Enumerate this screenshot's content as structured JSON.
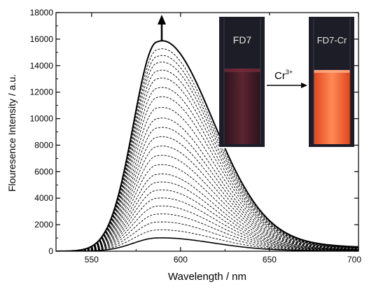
{
  "chart_data": {
    "type": "line",
    "xlabel": "Wavelength / nm",
    "ylabel": "Flouresence Intensity / a.u.",
    "xlim": [
      530,
      700
    ],
    "ylim": [
      0,
      18000
    ],
    "xticks": [
      550,
      600,
      650,
      700
    ],
    "yticks": [
      0,
      2000,
      4000,
      6000,
      8000,
      10000,
      12000,
      14000,
      16000,
      18000
    ],
    "grid": false,
    "peak_wavelength": 587,
    "curve_count": 24,
    "peak_intensities": [
      1000,
      1600,
      2200,
      2800,
      3400,
      4000,
      4600,
      5200,
      5800,
      6500,
      7200,
      7900,
      8600,
      9300,
      10000,
      10800,
      11600,
      12300,
      13000,
      13600,
      14200,
      14700,
      15200,
      15800
    ],
    "first_curve_style": "solid",
    "last_curve_style": "solid",
    "intermediate_curve_style": "dashed",
    "arrow_direction": "up",
    "inset": {
      "left_vial_label": "FD7",
      "right_vial_label": "FD7-Cr",
      "reagent_label": "Cr",
      "reagent_superscript": "3+",
      "left_vial_color": "#4a1c22",
      "right_vial_color": "#ff6a3a",
      "background_color": "#20212c"
    }
  }
}
